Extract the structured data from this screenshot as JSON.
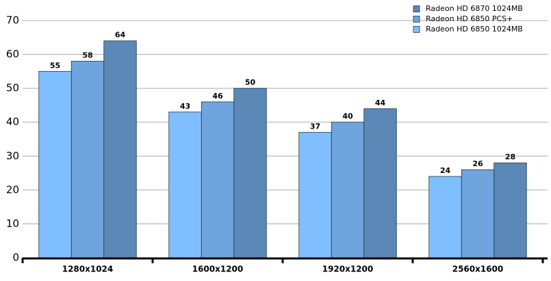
{
  "chart_data": {
    "type": "bar",
    "categories": [
      "1280x1024",
      "1600x1200",
      "1920x1200",
      "2560x1600"
    ],
    "series": [
      {
        "name": "Radeon HD 6850 1024MB",
        "color": "#80bfff",
        "values": [
          55,
          43,
          37,
          24
        ]
      },
      {
        "name": "Radeon HD 6850 PCS+",
        "color": "#6fa5de",
        "values": [
          58,
          46,
          40,
          26
        ]
      },
      {
        "name": "Radeon HD 6870 1024MB",
        "color": "#5b88b6",
        "values": [
          64,
          50,
          44,
          28
        ]
      }
    ],
    "ylim": [
      0,
      70
    ],
    "yticks": [
      0,
      10,
      20,
      30,
      40,
      50,
      60,
      70
    ],
    "grid": true,
    "legend": "top-right"
  }
}
